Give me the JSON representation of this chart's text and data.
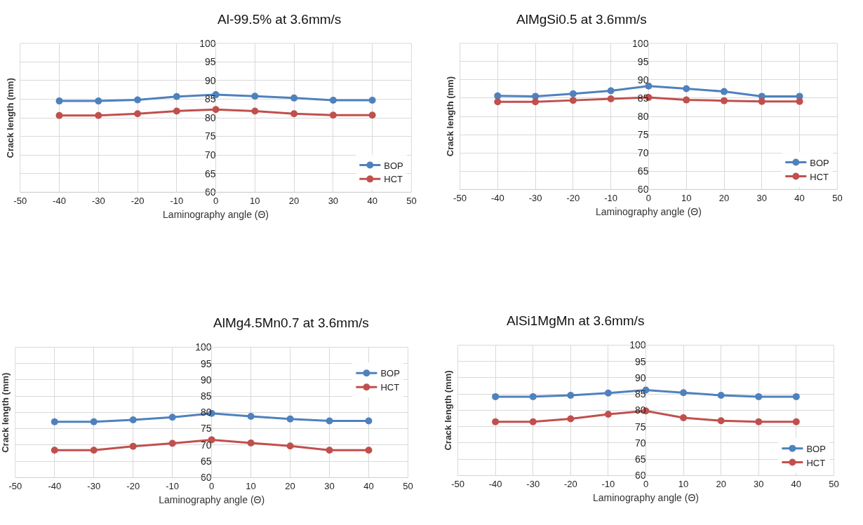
{
  "chart_data": [
    {
      "type": "line",
      "title": "Al-99.5% at 3.6mm/s",
      "xlabel": "Laminography angle (Θ)",
      "ylabel": "Crack length (mm)",
      "x": [
        -40,
        -30,
        -20,
        -10,
        0,
        10,
        20,
        30,
        40
      ],
      "xlim": [
        -50,
        50
      ],
      "xticks": [
        -50,
        -40,
        -30,
        -20,
        -10,
        0,
        10,
        20,
        30,
        40,
        50
      ],
      "ylim": [
        60,
        100
      ],
      "yticks": [
        60,
        65,
        70,
        75,
        80,
        85,
        90,
        95,
        100
      ],
      "grid": true,
      "legend": "bottom right",
      "marker": "circle",
      "line_style": "solid",
      "series": [
        {
          "name": "BOP",
          "color": "#4f81bd",
          "values": [
            84.5,
            84.5,
            84.8,
            85.7,
            86.2,
            85.8,
            85.3,
            84.7,
            84.7
          ]
        },
        {
          "name": "HCT",
          "color": "#c0504d",
          "values": [
            80.6,
            80.6,
            81.1,
            81.8,
            82.2,
            81.8,
            81.1,
            80.7,
            80.7
          ]
        }
      ]
    },
    {
      "type": "line",
      "title": "AlMgSi0.5 at 3.6mm/s",
      "xlabel": "Laminography angle (Θ)",
      "ylabel": "Crack length (mm)",
      "x": [
        -40,
        -30,
        -20,
        -10,
        0,
        10,
        20,
        30,
        40
      ],
      "xlim": [
        -50,
        50
      ],
      "xticks": [
        -50,
        -40,
        -30,
        -20,
        -10,
        0,
        10,
        20,
        30,
        40,
        50
      ],
      "ylim": [
        60,
        100
      ],
      "yticks": [
        60,
        65,
        70,
        75,
        80,
        85,
        90,
        95,
        100
      ],
      "grid": true,
      "legend": "bottom right",
      "marker": "circle",
      "line_style": "solid",
      "series": [
        {
          "name": "BOP",
          "color": "#4f81bd",
          "values": [
            85.6,
            85.5,
            86.2,
            87.0,
            88.3,
            87.6,
            86.8,
            85.5,
            85.5
          ]
        },
        {
          "name": "HCT",
          "color": "#c0504d",
          "values": [
            84.0,
            84.0,
            84.4,
            84.8,
            85.2,
            84.5,
            84.3,
            84.1,
            84.1
          ]
        }
      ]
    },
    {
      "type": "line",
      "title": "AlMg4.5Mn0.7 at 3.6mm/s",
      "xlabel": "Laminography angle (Θ)",
      "ylabel": "Crack length (mm)",
      "x": [
        -40,
        -30,
        -20,
        -10,
        0,
        10,
        20,
        30,
        40
      ],
      "xlim": [
        -50,
        50
      ],
      "xticks": [
        -50,
        -40,
        -30,
        -20,
        -10,
        0,
        10,
        20,
        30,
        40,
        50
      ],
      "ylim": [
        60,
        100
      ],
      "yticks": [
        60,
        65,
        70,
        75,
        80,
        85,
        90,
        95,
        100
      ],
      "grid": true,
      "legend": "top right",
      "marker": "circle",
      "line_style": "solid",
      "series": [
        {
          "name": "BOP",
          "color": "#4f81bd",
          "values": [
            77.1,
            77.1,
            77.7,
            78.5,
            79.7,
            78.8,
            78.0,
            77.4,
            77.4
          ]
        },
        {
          "name": "HCT",
          "color": "#c0504d",
          "values": [
            68.4,
            68.4,
            69.6,
            70.5,
            71.6,
            70.6,
            69.7,
            68.4,
            68.4
          ]
        }
      ]
    },
    {
      "type": "line",
      "title": "AlSi1MgMn at 3.6mm/s",
      "xlabel": "Laminography angle (Θ)",
      "ylabel": "Crack length (mm)",
      "x": [
        -40,
        -30,
        -20,
        -10,
        0,
        10,
        20,
        30,
        40
      ],
      "xlim": [
        -50,
        50
      ],
      "xticks": [
        -50,
        -40,
        -30,
        -20,
        -10,
        0,
        10,
        20,
        30,
        40,
        50
      ],
      "ylim": [
        60,
        100
      ],
      "yticks": [
        60,
        65,
        70,
        75,
        80,
        85,
        90,
        95,
        100
      ],
      "grid": true,
      "legend": "bottom right",
      "marker": "circle",
      "line_style": "solid",
      "series": [
        {
          "name": "BOP",
          "color": "#4f81bd",
          "values": [
            84.2,
            84.2,
            84.6,
            85.3,
            86.2,
            85.4,
            84.6,
            84.2,
            84.2
          ]
        },
        {
          "name": "HCT",
          "color": "#c0504d",
          "values": [
            76.5,
            76.5,
            77.4,
            78.8,
            79.8,
            77.7,
            76.8,
            76.5,
            76.5
          ]
        }
      ]
    }
  ]
}
